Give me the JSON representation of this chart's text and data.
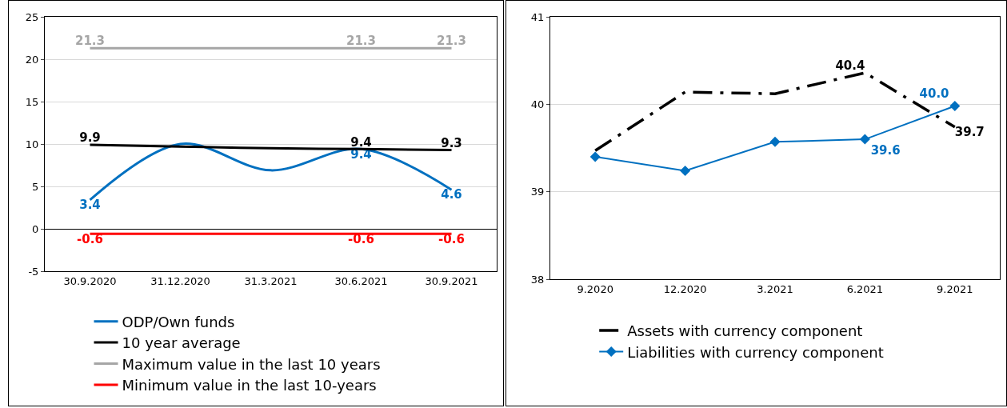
{
  "chart_data": [
    {
      "type": "line",
      "categories": [
        "30.9.2020",
        "31.12.2020",
        "31.3.2021",
        "30.6.2021",
        "30.9.2021"
      ],
      "ylim": [
        -5,
        25
      ],
      "yticks": [
        -5,
        0,
        5,
        10,
        15,
        20,
        25
      ],
      "grid": "y",
      "legend": "bottom",
      "line_style": "solid",
      "marker": "none",
      "series": [
        {
          "name": "ODP/Own funds",
          "color": "#0070c0",
          "values": [
            3.4,
            10.0,
            6.9,
            9.4,
            4.6
          ],
          "value_labels": [
            "3.4",
            null,
            null,
            "9.4",
            "4.6"
          ]
        },
        {
          "name": "10 year average",
          "color": "#000000",
          "values": [
            9.9,
            9.7,
            9.5,
            9.4,
            9.3
          ],
          "value_labels": [
            "9.9",
            null,
            null,
            "9.4",
            "9.3"
          ]
        },
        {
          "name": "Maximum value in the last 10 years",
          "color": "#a6a6a6",
          "values": [
            21.3,
            21.3,
            21.3,
            21.3,
            21.3
          ],
          "value_labels": [
            "21.3",
            null,
            null,
            "21.3",
            "21.3"
          ]
        },
        {
          "name": "Minimum value in the last 10-years",
          "color": "#ff0000",
          "values": [
            -0.6,
            -0.6,
            -0.6,
            -0.6,
            -0.6
          ],
          "value_labels": [
            "-0.6",
            null,
            null,
            "-0.6",
            "-0.6"
          ]
        }
      ]
    },
    {
      "type": "line",
      "categories": [
        "9.2020",
        "12.2020",
        "3.2021",
        "6.2021",
        "9.2021"
      ],
      "ylim": [
        38,
        41
      ],
      "yticks": [
        38,
        39,
        40,
        41
      ],
      "grid": "y",
      "legend": "bottom",
      "series": [
        {
          "name": "Assets with currency component",
          "color": "#000000",
          "line_style": "dashed",
          "marker": "none",
          "values": [
            39.47,
            40.14,
            40.12,
            40.36,
            39.74
          ],
          "value_labels": [
            null,
            null,
            null,
            "40.4",
            "39.7"
          ]
        },
        {
          "name": "Liabilities with currency component",
          "color": "#0070c0",
          "line_style": "solid",
          "marker": "diamond",
          "values": [
            39.4,
            39.24,
            39.57,
            39.6,
            39.98
          ],
          "value_labels": [
            null,
            null,
            null,
            "39.6",
            "40.0"
          ]
        }
      ]
    }
  ]
}
